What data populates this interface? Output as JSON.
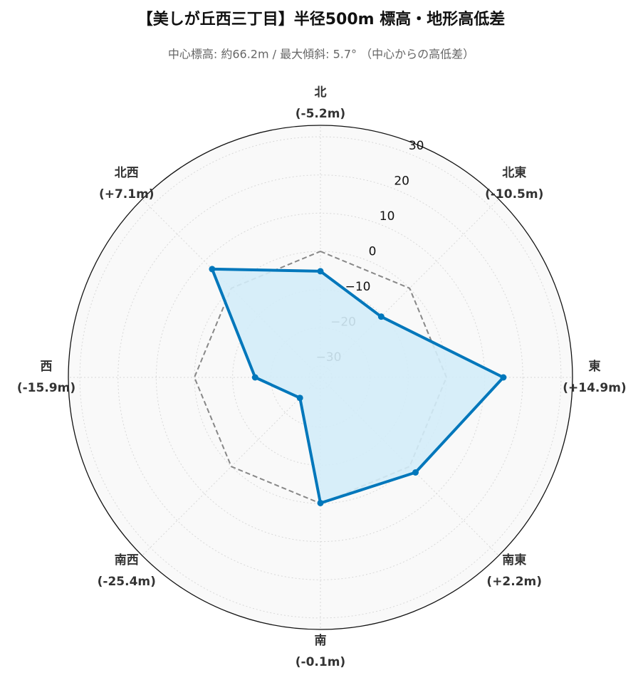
{
  "chart_data": {
    "type": "radar",
    "title": "【美しが丘西三丁目】半径500m 標高・地形高低差",
    "subtitle": "中心標高: 約66.2m / 最大傾斜: 5.7° （中心からの高低差）",
    "categories": [
      "北",
      "北東",
      "東",
      "南東",
      "南",
      "南西",
      "西",
      "北西"
    ],
    "series": [
      {
        "color": "#0077bb",
        "fill": "#d3ecf8",
        "values": [
          -5.2,
          -10.5,
          14.9,
          2.2,
          -0.1,
          -25.4,
          -15.9,
          7.1
        ],
        "value_labels": [
          "(-5.2m)",
          "(-10.5m)",
          "(+14.9m)",
          "(+2.2m)",
          "(-0.1m)",
          "(-25.4m)",
          "(-15.9m)",
          "(+7.1m)"
        ]
      },
      {
        "color": "#888888",
        "dashed": true,
        "values": [
          0,
          0,
          0,
          0,
          0,
          0,
          0,
          0
        ]
      }
    ],
    "ylim": [
      -33,
      33
    ],
    "yticks": [
      {
        "value": -30,
        "label": "−30"
      },
      {
        "value": -20,
        "label": "−20"
      },
      {
        "value": -10,
        "label": "−10"
      },
      0,
      10,
      20,
      30
    ],
    "grid": true
  }
}
